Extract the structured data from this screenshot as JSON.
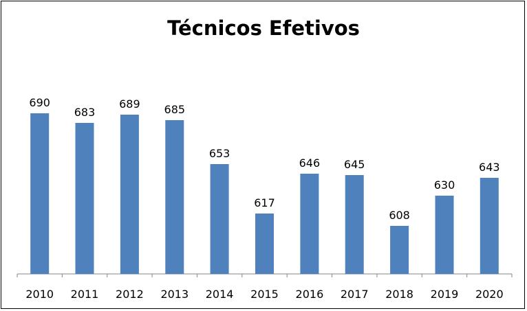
{
  "chart_data": {
    "type": "bar",
    "title": "Técnicos Efetivos",
    "categories": [
      "2010",
      "2011",
      "2012",
      "2013",
      "2014",
      "2015",
      "2016",
      "2017",
      "2018",
      "2019",
      "2020"
    ],
    "values": [
      690,
      683,
      689,
      685,
      653,
      617,
      646,
      645,
      608,
      630,
      643
    ],
    "ylim": [
      573,
      712
    ],
    "grid": false,
    "legend": "none",
    "bar_color": "#4F81BD",
    "show_data_labels": true
  }
}
